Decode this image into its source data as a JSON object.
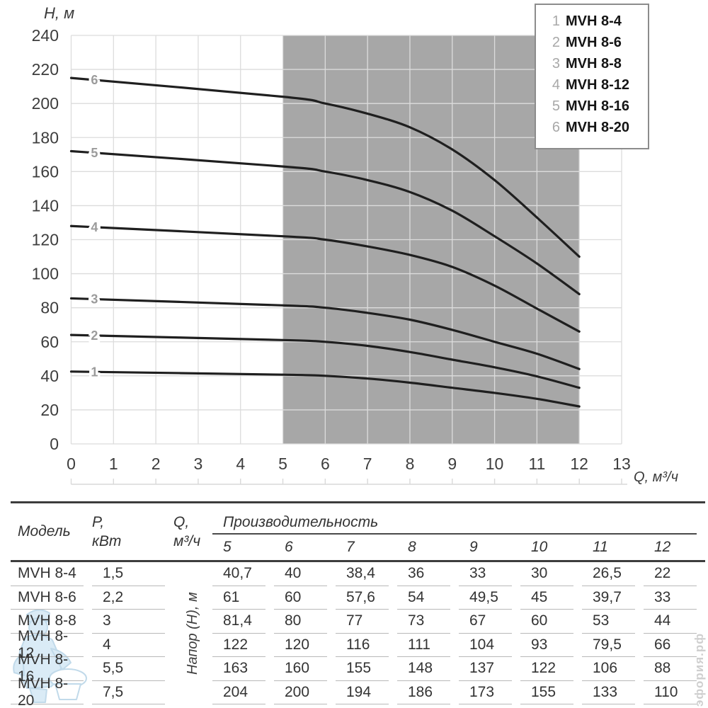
{
  "chart": {
    "y_axis_title": "H, м",
    "x_axis_title": "Q, м³/ч"
  },
  "legend": {
    "items": [
      {
        "num": "1",
        "label": "MVH 8-4"
      },
      {
        "num": "2",
        "label": "MVH 8-6"
      },
      {
        "num": "3",
        "label": "MVH 8-8"
      },
      {
        "num": "4",
        "label": "MVH 8-12"
      },
      {
        "num": "5",
        "label": "MVH 8-16"
      },
      {
        "num": "6",
        "label": "MVH 8-20"
      }
    ]
  },
  "chart_data": {
    "type": "line",
    "title": "",
    "xlabel": "Q, м³/ч",
    "ylabel": "H, м",
    "xlim": [
      0,
      13
    ],
    "ylim": [
      0,
      240
    ],
    "xticks": [
      0,
      1,
      2,
      3,
      4,
      5,
      6,
      7,
      8,
      9,
      10,
      11,
      12,
      13
    ],
    "yticks": [
      0,
      20,
      40,
      60,
      80,
      100,
      120,
      140,
      160,
      180,
      200,
      220,
      240
    ],
    "grid": true,
    "legend_position": "top-right",
    "operating_range": {
      "x_start": 5,
      "x_end": 12,
      "fill": "#a7a7a7"
    },
    "colors": {
      "curve": "#1f1f1f",
      "grid": "#dcdcdc",
      "curve_label": "#9b9b9b"
    },
    "x": [
      0,
      5,
      6,
      7,
      8,
      9,
      10,
      11,
      12
    ],
    "series": [
      {
        "curve_label": "1",
        "name": "MVH 8-4",
        "values": [
          42.5,
          40.7,
          40,
          38.4,
          36,
          33,
          30,
          26.5,
          22
        ]
      },
      {
        "curve_label": "2",
        "name": "MVH 8-6",
        "values": [
          64,
          61,
          60,
          57.6,
          54,
          49.5,
          45,
          39.7,
          33
        ]
      },
      {
        "curve_label": "3",
        "name": "MVH 8-8",
        "values": [
          85.5,
          81.4,
          80,
          77,
          73,
          67,
          60,
          53,
          44
        ]
      },
      {
        "curve_label": "4",
        "name": "MVH 8-12",
        "values": [
          128,
          122,
          120,
          116,
          111,
          104,
          93,
          79.5,
          66
        ]
      },
      {
        "curve_label": "5",
        "name": "MVH 8-16",
        "values": [
          172,
          163,
          160,
          155,
          148,
          137,
          122,
          106,
          88
        ]
      },
      {
        "curve_label": "6",
        "name": "MVH 8-20",
        "values": [
          215,
          204,
          200,
          194,
          186,
          173,
          155,
          133,
          110
        ]
      }
    ]
  },
  "table": {
    "col_model": "Модель",
    "col_power_line1": "P,",
    "col_power_line2": "кВт",
    "col_flow_line1": "Q,",
    "col_flow_line2": "м³/ч",
    "group_header": "Производительность",
    "flow_columns": [
      "5",
      "6",
      "7",
      "8",
      "9",
      "10",
      "11",
      "12"
    ],
    "side_label": "Напор (H), м",
    "rows": [
      {
        "model": "MVH 8-4",
        "power": "1,5",
        "heads": [
          "40,7",
          "40",
          "38,4",
          "36",
          "33",
          "30",
          "26,5",
          "22"
        ]
      },
      {
        "model": "MVH 8-6",
        "power": "2,2",
        "heads": [
          "61",
          "60",
          "57,6",
          "54",
          "49,5",
          "45",
          "39,7",
          "33"
        ]
      },
      {
        "model": "MVH 8-8",
        "power": "3",
        "heads": [
          "81,4",
          "80",
          "77",
          "73",
          "67",
          "60",
          "53",
          "44"
        ]
      },
      {
        "model": "MVH 8-12",
        "power": "4",
        "heads": [
          "122",
          "120",
          "116",
          "111",
          "104",
          "93",
          "79,5",
          "66"
        ]
      },
      {
        "model": "MVH 8-16",
        "power": "5,5",
        "heads": [
          "163",
          "160",
          "155",
          "148",
          "137",
          "122",
          "106",
          "88"
        ]
      },
      {
        "model": "MVH 8-20",
        "power": "7,5",
        "heads": [
          "204",
          "200",
          "194",
          "186",
          "173",
          "155",
          "133",
          "110"
        ]
      }
    ]
  },
  "watermarks": {
    "site_text": "эфория.рф",
    "mascot_icon": "plumber-mascot"
  }
}
